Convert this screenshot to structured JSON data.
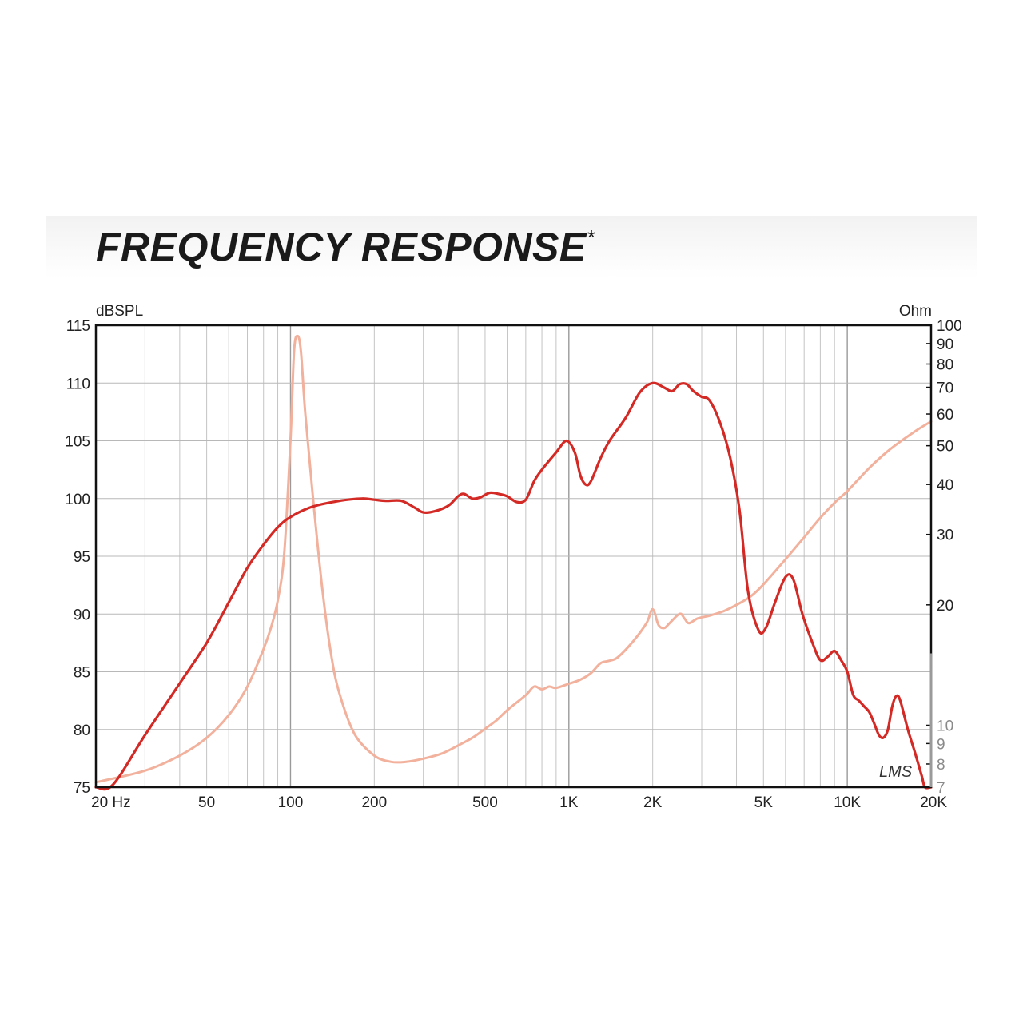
{
  "page": {
    "title": "FREQUENCY RESPONSE",
    "title_mark": "*"
  },
  "chart_data": {
    "type": "line",
    "title": "FREQUENCY RESPONSE*",
    "left_axis_label": "dBSPL",
    "right_axis_label": "Ohm",
    "watermark": "LMS",
    "x_scale": "log",
    "xlim": [
      20,
      20000
    ],
    "ylim_left": [
      75,
      115
    ],
    "ylim_right": [
      7,
      100
    ],
    "right_scale": "log",
    "grid": true,
    "x_ticks": [
      {
        "value": 20,
        "label": "20  Hz"
      },
      {
        "value": 50,
        "label": "50"
      },
      {
        "value": 100,
        "label": "100"
      },
      {
        "value": 200,
        "label": "200"
      },
      {
        "value": 500,
        "label": "500"
      },
      {
        "value": 1000,
        "label": "1K"
      },
      {
        "value": 2000,
        "label": "2K"
      },
      {
        "value": 5000,
        "label": "5K"
      },
      {
        "value": 10000,
        "label": "10K"
      },
      {
        "value": 20000,
        "label": "20K"
      }
    ],
    "y_left_ticks": [
      75,
      80,
      85,
      90,
      95,
      100,
      105,
      110,
      115
    ],
    "y_right_ticks": [
      7,
      8,
      9,
      10,
      20,
      30,
      40,
      50,
      60,
      70,
      80,
      90,
      100
    ],
    "series": [
      {
        "axis": "left",
        "color": "#d42a26",
        "points": [
          [
            20,
            75.0
          ],
          [
            23,
            75.2
          ],
          [
            30,
            79.5
          ],
          [
            40,
            84.0
          ],
          [
            50,
            87.5
          ],
          [
            60,
            91.0
          ],
          [
            70,
            94.0
          ],
          [
            80,
            96.0
          ],
          [
            90,
            97.5
          ],
          [
            100,
            98.4
          ],
          [
            120,
            99.3
          ],
          [
            150,
            99.8
          ],
          [
            180,
            100.0
          ],
          [
            200,
            99.9
          ],
          [
            220,
            99.8
          ],
          [
            250,
            99.8
          ],
          [
            280,
            99.2
          ],
          [
            300,
            98.8
          ],
          [
            330,
            98.9
          ],
          [
            370,
            99.4
          ],
          [
            400,
            100.2
          ],
          [
            420,
            100.4
          ],
          [
            450,
            100.0
          ],
          [
            480,
            100.1
          ],
          [
            520,
            100.5
          ],
          [
            560,
            100.4
          ],
          [
            600,
            100.2
          ],
          [
            650,
            99.7
          ],
          [
            700,
            99.9
          ],
          [
            750,
            101.5
          ],
          [
            800,
            102.5
          ],
          [
            900,
            104.0
          ],
          [
            980,
            105.0
          ],
          [
            1050,
            104.0
          ],
          [
            1100,
            102.0
          ],
          [
            1150,
            101.2
          ],
          [
            1200,
            101.5
          ],
          [
            1300,
            103.5
          ],
          [
            1400,
            105.0
          ],
          [
            1600,
            107.0
          ],
          [
            1800,
            109.2
          ],
          [
            2000,
            110.0
          ],
          [
            2200,
            109.6
          ],
          [
            2350,
            109.3
          ],
          [
            2500,
            109.9
          ],
          [
            2650,
            109.9
          ],
          [
            2800,
            109.3
          ],
          [
            3000,
            108.8
          ],
          [
            3200,
            108.5
          ],
          [
            3500,
            106.5
          ],
          [
            3800,
            103.5
          ],
          [
            4100,
            99.0
          ],
          [
            4400,
            92.0
          ],
          [
            4800,
            88.6
          ],
          [
            5100,
            88.8
          ],
          [
            5500,
            91.0
          ],
          [
            6000,
            93.2
          ],
          [
            6400,
            93.0
          ],
          [
            6900,
            90.0
          ],
          [
            7500,
            87.5
          ],
          [
            8000,
            86.0
          ],
          [
            8500,
            86.3
          ],
          [
            9000,
            86.8
          ],
          [
            9500,
            86.0
          ],
          [
            10000,
            85.0
          ],
          [
            10500,
            83.0
          ],
          [
            11000,
            82.5
          ],
          [
            11500,
            82.0
          ],
          [
            12000,
            81.5
          ],
          [
            12500,
            80.5
          ],
          [
            13000,
            79.5
          ],
          [
            13500,
            79.3
          ],
          [
            14000,
            80.0
          ],
          [
            14500,
            82.0
          ],
          [
            15000,
            82.9
          ],
          [
            15500,
            82.5
          ],
          [
            16500,
            80.0
          ],
          [
            17500,
            78.0
          ],
          [
            18500,
            76.0
          ],
          [
            19000,
            75.0
          ],
          [
            20000,
            75.0
          ]
        ]
      },
      {
        "axis": "right",
        "color": "#f2b19c",
        "points": [
          [
            20,
            7.2
          ],
          [
            30,
            7.7
          ],
          [
            40,
            8.4
          ],
          [
            50,
            9.3
          ],
          [
            60,
            10.6
          ],
          [
            70,
            12.5
          ],
          [
            80,
            15.5
          ],
          [
            85,
            17.5
          ],
          [
            90,
            20.5
          ],
          [
            95,
            27.0
          ],
          [
            100,
            52.0
          ],
          [
            103,
            86.0
          ],
          [
            106,
            94.0
          ],
          [
            109,
            86.0
          ],
          [
            113,
            60.0
          ],
          [
            120,
            38.0
          ],
          [
            130,
            22.0
          ],
          [
            140,
            15.0
          ],
          [
            150,
            12.0
          ],
          [
            170,
            9.5
          ],
          [
            200,
            8.4
          ],
          [
            230,
            8.1
          ],
          [
            260,
            8.1
          ],
          [
            300,
            8.25
          ],
          [
            350,
            8.5
          ],
          [
            400,
            8.9
          ],
          [
            450,
            9.3
          ],
          [
            500,
            9.8
          ],
          [
            550,
            10.3
          ],
          [
            600,
            10.9
          ],
          [
            700,
            11.9
          ],
          [
            750,
            12.5
          ],
          [
            800,
            12.3
          ],
          [
            850,
            12.5
          ],
          [
            900,
            12.4
          ],
          [
            1000,
            12.7
          ],
          [
            1100,
            13.0
          ],
          [
            1200,
            13.5
          ],
          [
            1300,
            14.3
          ],
          [
            1400,
            14.5
          ],
          [
            1500,
            14.8
          ],
          [
            1700,
            16.2
          ],
          [
            1900,
            18.0
          ],
          [
            2000,
            19.5
          ],
          [
            2100,
            17.8
          ],
          [
            2200,
            17.5
          ],
          [
            2300,
            18.0
          ],
          [
            2500,
            19.0
          ],
          [
            2600,
            18.5
          ],
          [
            2700,
            18.0
          ],
          [
            2900,
            18.5
          ],
          [
            3200,
            18.8
          ],
          [
            3600,
            19.3
          ],
          [
            4000,
            20.0
          ],
          [
            4500,
            21.0
          ],
          [
            5000,
            22.5
          ],
          [
            6000,
            26.0
          ],
          [
            7000,
            29.5
          ],
          [
            8000,
            33.0
          ],
          [
            9000,
            36.0
          ],
          [
            10000,
            38.5
          ],
          [
            12000,
            44.0
          ],
          [
            14000,
            48.5
          ],
          [
            16000,
            52.0
          ],
          [
            18000,
            55.0
          ],
          [
            20000,
            57.5
          ]
        ]
      }
    ]
  }
}
